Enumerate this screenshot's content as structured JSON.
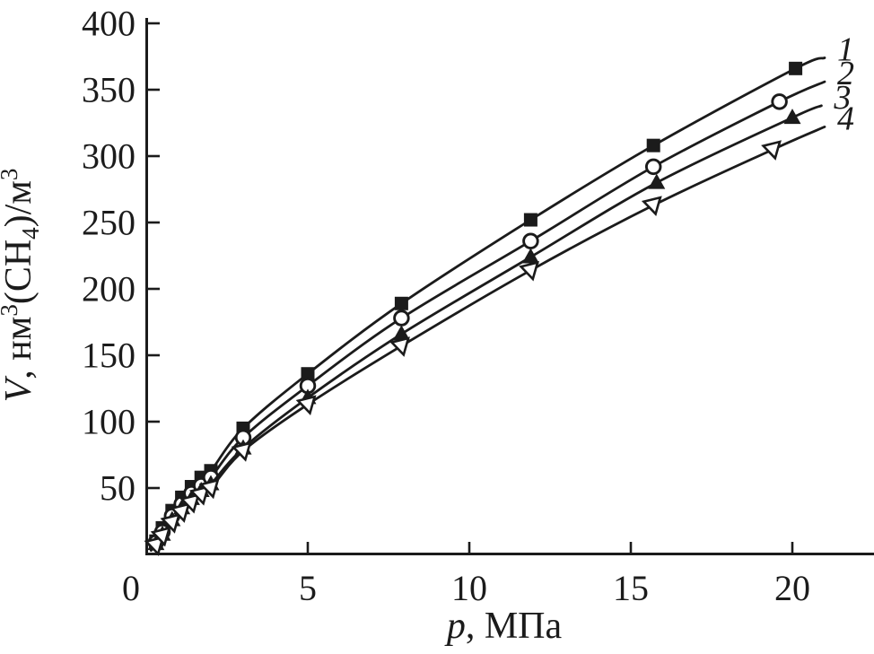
{
  "figure": {
    "background": "#ffffff",
    "ink_color": "#1b1b1b"
  },
  "chart_data": {
    "type": "line",
    "title": "",
    "xlabel_parts": [
      {
        "t": "p",
        "style": "italic"
      },
      {
        "t": ", МПа",
        "style": "normal"
      }
    ],
    "ylabel_parts": [
      {
        "t": "V",
        "style": "italic"
      },
      {
        "t": ", нм",
        "style": "normal"
      },
      {
        "t": "3",
        "pos": "sup"
      },
      {
        "t": "(CH",
        "style": "normal"
      },
      {
        "t": "4",
        "pos": "sub"
      },
      {
        "t": ")/м",
        "style": "normal"
      },
      {
        "t": "3",
        "pos": "sup"
      }
    ],
    "xlim": [
      0,
      22.5
    ],
    "ylim": [
      0,
      403
    ],
    "grid": false,
    "legend_position": "curve-end-labels",
    "x_ticks": [
      {
        "v": 0,
        "label": "0"
      },
      {
        "v": 5,
        "label": "5"
      },
      {
        "v": 10,
        "label": "10"
      },
      {
        "v": 15,
        "label": "15"
      },
      {
        "v": 20,
        "label": "20"
      }
    ],
    "y_ticks": [
      {
        "v": 50,
        "label": "50"
      },
      {
        "v": 100,
        "label": "100"
      },
      {
        "v": 150,
        "label": "150"
      },
      {
        "v": 200,
        "label": "200"
      },
      {
        "v": 250,
        "label": "250"
      },
      {
        "v": 300,
        "label": "300"
      },
      {
        "v": 350,
        "label": "350"
      },
      {
        "v": 400,
        "label": "400"
      }
    ],
    "series": [
      {
        "name": "1",
        "marker": "square-filled",
        "line_start": [
          0.15,
          5
        ],
        "points": [
          [
            0.3,
            10
          ],
          [
            0.5,
            20
          ],
          [
            0.8,
            33
          ],
          [
            1.1,
            43
          ],
          [
            1.4,
            51
          ],
          [
            1.7,
            58
          ],
          [
            2.0,
            63
          ],
          [
            3.0,
            95
          ],
          [
            5.0,
            136
          ],
          [
            7.9,
            189
          ],
          [
            11.9,
            252
          ],
          [
            15.7,
            308
          ],
          [
            20.1,
            366
          ]
        ],
        "line_end": [
          21.0,
          374
        ]
      },
      {
        "name": "2",
        "marker": "circle-open",
        "line_start": [
          0.15,
          4
        ],
        "points": [
          [
            0.3,
            9
          ],
          [
            0.5,
            17
          ],
          [
            0.8,
            29
          ],
          [
            1.1,
            38
          ],
          [
            1.4,
            46
          ],
          [
            1.7,
            52
          ],
          [
            2.0,
            58
          ],
          [
            3.0,
            88
          ],
          [
            5.0,
            127
          ],
          [
            7.9,
            178
          ],
          [
            11.9,
            236
          ],
          [
            15.7,
            292
          ],
          [
            19.6,
            341
          ]
        ],
        "line_end": [
          21.0,
          356
        ]
      },
      {
        "name": "3",
        "marker": "triangle-up-filled",
        "line_start": [
          0.15,
          3.5
        ],
        "points": [
          [
            0.3,
            8
          ],
          [
            0.5,
            15
          ],
          [
            0.8,
            26
          ],
          [
            1.1,
            35
          ],
          [
            1.4,
            42
          ],
          [
            1.7,
            48
          ],
          [
            2.0,
            53
          ],
          [
            3.0,
            80
          ],
          [
            5.0,
            118
          ],
          [
            7.9,
            166
          ],
          [
            11.9,
            224
          ],
          [
            15.8,
            280
          ],
          [
            20.0,
            329
          ]
        ],
        "line_end": [
          20.9,
          338
        ]
      },
      {
        "name": "4",
        "marker": "triangle-down-open",
        "line_start": [
          0.15,
          3
        ],
        "points": [
          [
            0.3,
            7
          ],
          [
            0.5,
            14
          ],
          [
            0.8,
            24
          ],
          [
            1.1,
            32
          ],
          [
            1.4,
            39
          ],
          [
            1.7,
            45
          ],
          [
            2.0,
            50
          ],
          [
            3.0,
            78
          ],
          [
            5.0,
            113
          ],
          [
            7.9,
            157
          ],
          [
            11.9,
            214
          ],
          [
            15.7,
            263
          ],
          [
            19.4,
            305
          ]
        ],
        "line_end": [
          21.0,
          322
        ]
      }
    ]
  }
}
